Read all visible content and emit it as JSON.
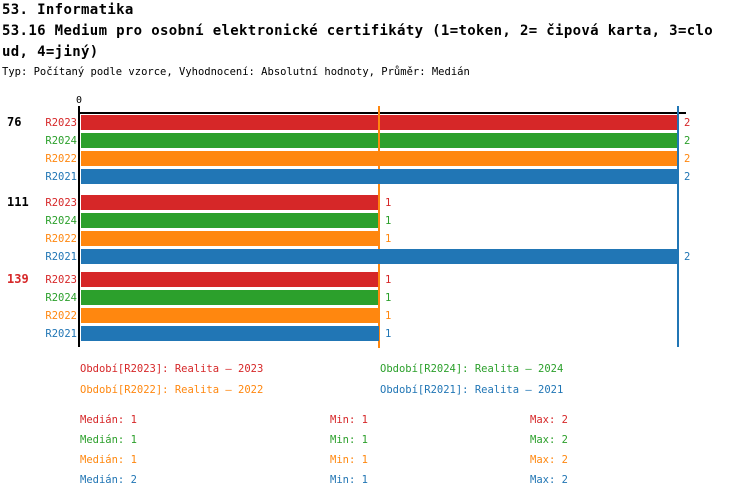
{
  "header": {
    "title_line1": "53. Informatika",
    "title_line2": "53.16 Medium pro osobní elektronické certifikáty (1=token, 2= čipová karta, 3=clo",
    "title_line3": "ud, 4=jiný)",
    "meta": "Typ: Počítaný podle vzorce, Vyhodnocení: Absolutní hodnoty, Průměr: Medián"
  },
  "chart_data": {
    "type": "bar",
    "orientation": "horizontal",
    "title": "53.16 Medium pro osobní elektronické certifikáty (1=token, 2= čipová karta, 3=cloud, 4=jiný)",
    "x_range": [
      0,
      2
    ],
    "x_ticks": [
      "0"
    ],
    "grid": false,
    "series_order": [
      "R2023",
      "R2024",
      "R2022",
      "R2021"
    ],
    "series_colors": {
      "R2023": "#d62728",
      "R2024": "#2ca02c",
      "R2022": "#ff870f",
      "R2021": "#2176b5"
    },
    "groups": [
      {
        "label": "76",
        "label_color": "#000000",
        "values": [
          2,
          2,
          2,
          2
        ]
      },
      {
        "label": "111",
        "label_color": "#000000",
        "values": [
          1,
          1,
          1,
          2
        ]
      },
      {
        "label": "139",
        "label_color": "#d62728",
        "values": [
          1,
          1,
          1,
          1
        ]
      }
    ],
    "reference_lines": [
      {
        "name": "median-line-r2022",
        "value": 1,
        "color": "#ff870f"
      },
      {
        "name": "median-line-r2021",
        "value": 2,
        "color": "#2176b5"
      }
    ]
  },
  "legend": {
    "items": [
      {
        "id": "r2023",
        "text": "Období[R2023]: Realita – 2023",
        "color": "#d62728"
      },
      {
        "id": "r2024",
        "text": "Období[R2024]: Realita – 2024",
        "color": "#2ca02c"
      },
      {
        "id": "r2022",
        "text": "Období[R2022]: Realita – 2022",
        "color": "#ff870f"
      },
      {
        "id": "r2021",
        "text": "Období[R2021]: Realita – 2021",
        "color": "#2176b5"
      }
    ]
  },
  "stats": {
    "rows": [
      {
        "id": "r2023",
        "color": "#d62728",
        "median": "Medián: 1",
        "min": "Min: 1",
        "max": "Max: 2"
      },
      {
        "id": "r2024",
        "color": "#2ca02c",
        "median": "Medián: 1",
        "min": "Min: 1",
        "max": "Max: 2"
      },
      {
        "id": "r2022",
        "color": "#ff870f",
        "median": "Medián: 1",
        "min": "Min: 1",
        "max": "Max: 2"
      },
      {
        "id": "r2021",
        "color": "#2176b5",
        "median": "Medián: 2",
        "min": "Min: 1",
        "max": "Max: 2"
      }
    ]
  }
}
